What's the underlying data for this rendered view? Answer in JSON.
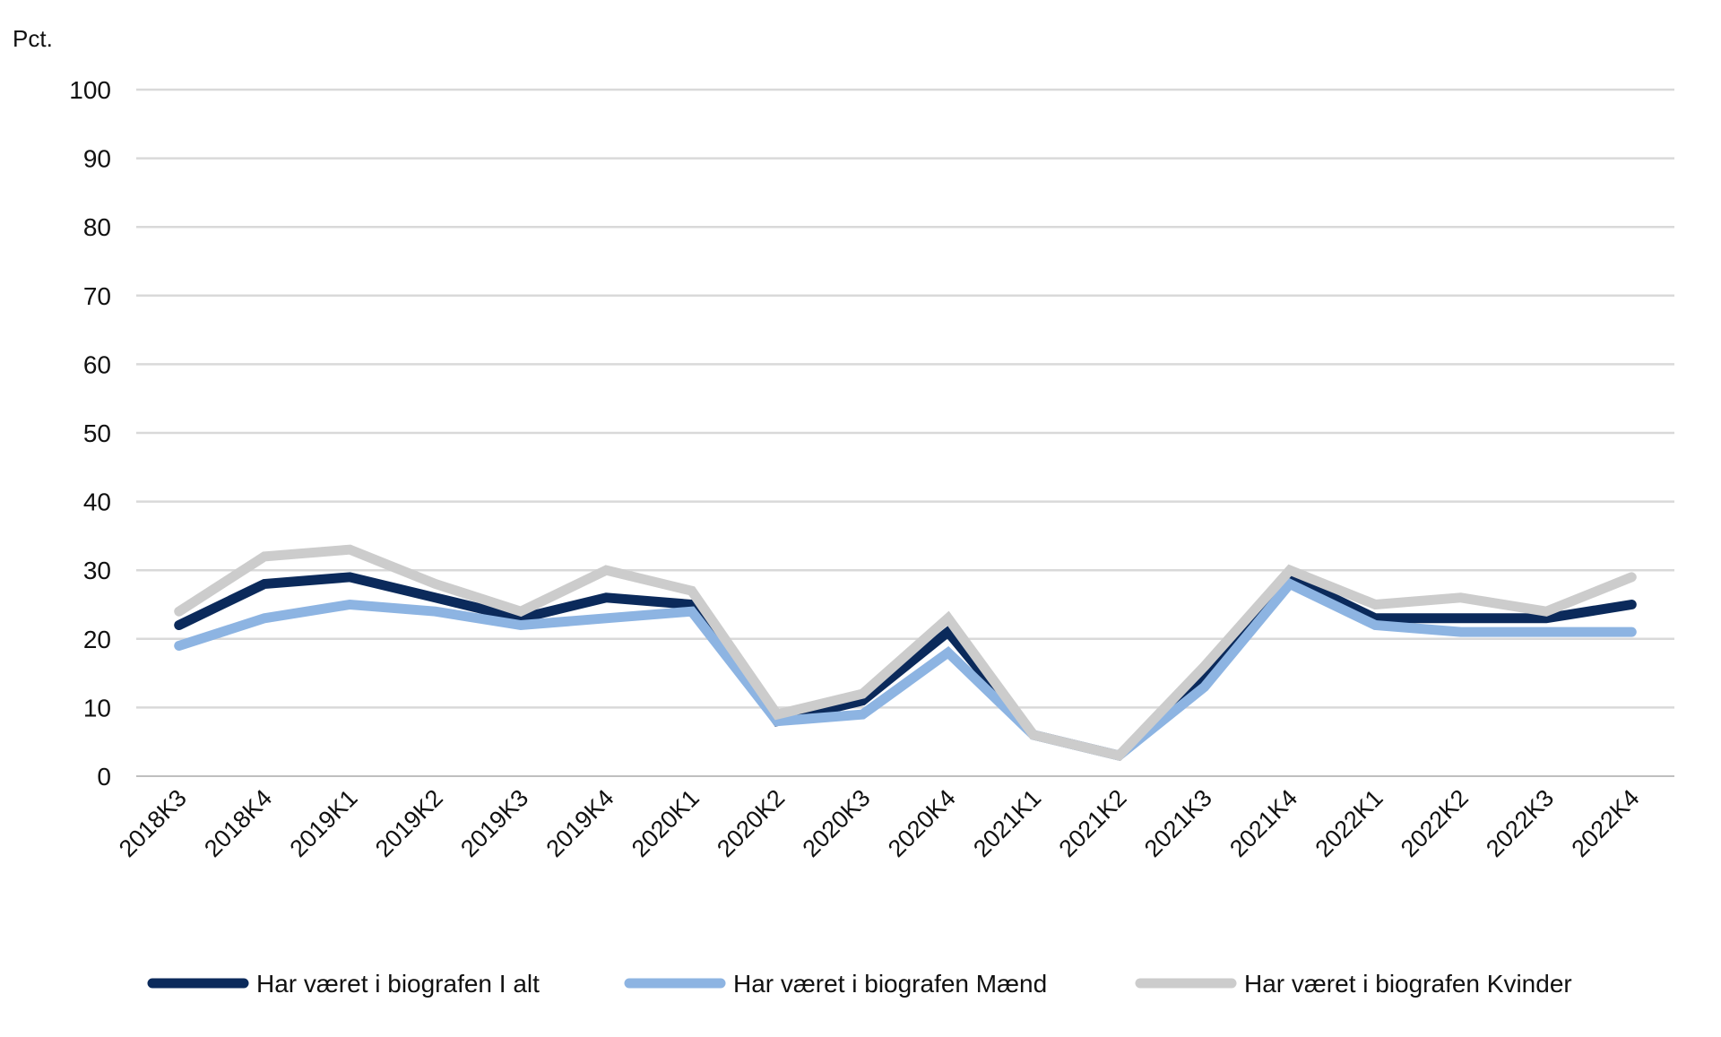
{
  "chart_data": {
    "type": "line",
    "unit_label": "Pct.",
    "categories": [
      "2018K3",
      "2018K4",
      "2019K1",
      "2019K2",
      "2019K3",
      "2019K4",
      "2020K1",
      "2020K2",
      "2020K3",
      "2020K4",
      "2021K1",
      "2021K2",
      "2021K3",
      "2021K4",
      "2022K1",
      "2022K2",
      "2022K3",
      "2022K4"
    ],
    "ylim": [
      0,
      100
    ],
    "yticks": [
      0,
      10,
      20,
      30,
      40,
      50,
      60,
      70,
      80,
      90,
      100
    ],
    "grid": true,
    "legend_position": "bottom",
    "series": [
      {
        "name": "Har været i biografen I alt",
        "color": "#0b2a5b",
        "values": [
          22,
          28,
          29,
          26,
          23,
          26,
          25,
          8,
          11,
          21,
          6,
          3,
          14,
          29,
          23,
          23,
          23,
          25
        ]
      },
      {
        "name": "Har været i biografen Mænd",
        "color": "#8db4e2",
        "values": [
          19,
          23,
          25,
          24,
          22,
          23,
          24,
          8,
          9,
          18,
          6,
          3,
          13,
          28,
          22,
          21,
          21,
          21
        ]
      },
      {
        "name": "Har været i biografen Kvinder",
        "color": "#cccccc",
        "values": [
          24,
          32,
          33,
          28,
          24,
          30,
          27,
          9,
          12,
          23,
          6,
          3,
          16,
          30,
          25,
          26,
          24,
          29
        ]
      }
    ]
  }
}
